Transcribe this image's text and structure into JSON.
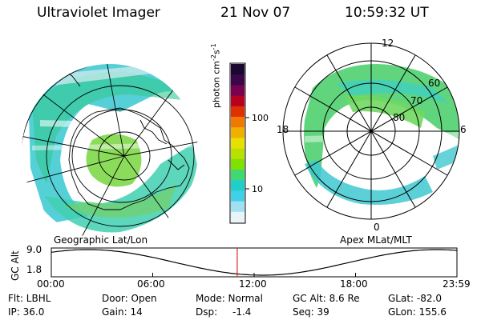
{
  "header": {
    "instrument": "Ultraviolet Imager",
    "date": "21 Nov 07",
    "time": "10:59:32 UT"
  },
  "colorbar": {
    "unit_base": "photon cm",
    "unit_exp1": "-2",
    "unit_mid": "s",
    "unit_exp2": "-1",
    "ticks": [
      {
        "label": "100",
        "value": 100
      },
      {
        "label": "10",
        "value": 10
      }
    ],
    "colors_top_to_bottom": [
      "#1a0830",
      "#3a0848",
      "#7a0050",
      "#b80020",
      "#e03000",
      "#f07a00",
      "#f0b000",
      "#e8e000",
      "#b8e000",
      "#80e000",
      "#40d870",
      "#20d0c8",
      "#40d0e8",
      "#a0e0f0",
      "#e8f4f8"
    ]
  },
  "geo_map": {
    "caption": "Geographic Lat/Lon"
  },
  "mag_map": {
    "caption": "Apex MLat/MLT",
    "mlt_labels": {
      "top": "12",
      "left": "18",
      "right": "6",
      "bottom": "0"
    },
    "lat_labels": [
      "60",
      "70",
      "80"
    ]
  },
  "timeline": {
    "ylabel": "GC Alt",
    "yticks": [
      "9.0",
      "1.8"
    ],
    "xticks": [
      "00:00",
      "06:00",
      "12:00",
      "18:00",
      "23:59"
    ],
    "marker_time": "10:59:32"
  },
  "footer": {
    "flt": "Flt: LBHL",
    "ip": "IP: 36.0",
    "door": "Door: Open",
    "gain": "Gain: 14",
    "mode": "Mode: Normal",
    "dsp_label": "Dsp:",
    "dsp_value": "-1.4",
    "gc_alt": "GC Alt: 8.6 Re",
    "seq": "Seq: 39",
    "glat": "GLat: -82.0",
    "glon": "GLon: 155.6"
  },
  "colors": {
    "marker": "#e02020",
    "line": "#000000"
  }
}
